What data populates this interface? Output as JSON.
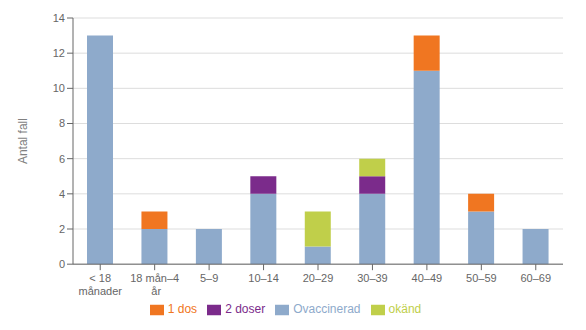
{
  "chart_data": {
    "type": "bar",
    "stacked": true,
    "grid": true,
    "legend": "bottom",
    "ylabel": "Antal fall",
    "categories": [
      "< 18\nmånader",
      "18 mån–4\n år",
      "5–9",
      "10–14",
      "20–29",
      "30–39",
      "40–49",
      "50–59",
      "60–69"
    ],
    "series": [
      {
        "name": "Ovaccinerad",
        "color": "#8EAACB",
        "values": [
          13,
          2,
          2,
          4,
          1,
          4,
          11,
          3,
          2
        ]
      },
      {
        "name": "1 dos",
        "color": "#F07621",
        "values": [
          0,
          1,
          0,
          0,
          0,
          0,
          2,
          1,
          0
        ]
      },
      {
        "name": "2 doser",
        "color": "#7B2B8B",
        "values": [
          0,
          0,
          0,
          1,
          0,
          1,
          0,
          0,
          0
        ]
      },
      {
        "name": "okänd",
        "color": "#C0CF4A",
        "values": [
          0,
          0,
          0,
          0,
          2,
          1,
          0,
          0,
          0
        ]
      }
    ],
    "ylim": [
      0,
      14
    ],
    "yticks": [
      0,
      2,
      4,
      6,
      8,
      10,
      12,
      14
    ]
  }
}
